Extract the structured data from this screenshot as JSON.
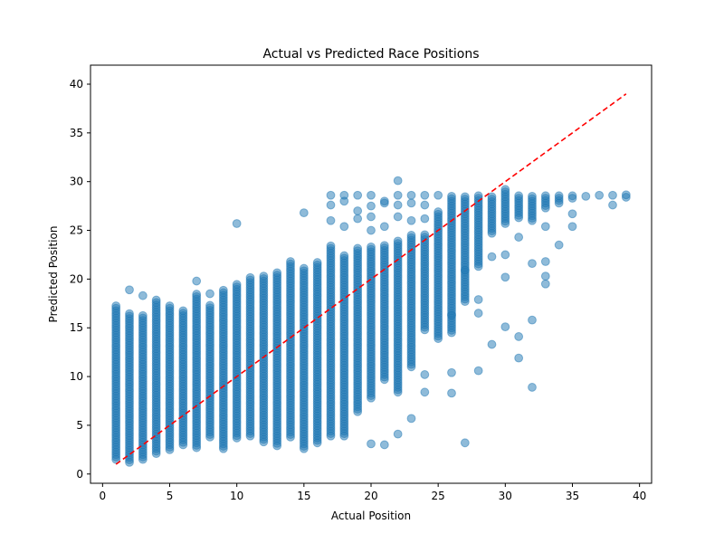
{
  "chart_data": {
    "type": "scatter",
    "title": "Actual vs Predicted Race Positions",
    "xlabel": "Actual Position",
    "ylabel": "Predicted Position",
    "xlim": [
      -0.9,
      40.9
    ],
    "ylim": [
      -0.95,
      41.95
    ],
    "xticks": [
      0,
      5,
      10,
      15,
      20,
      25,
      30,
      35,
      40
    ],
    "yticks": [
      0,
      5,
      10,
      15,
      20,
      25,
      30,
      35,
      40
    ],
    "grid": false,
    "series": [
      {
        "marker": "circle",
        "color": "#1f77b4",
        "alpha": 0.5,
        "columns": [
          {
            "x": 1,
            "min": 1.5,
            "max": 17.3,
            "extra": []
          },
          {
            "x": 2,
            "min": 1.2,
            "max": 16.5,
            "extra": [
              18.9
            ]
          },
          {
            "x": 3,
            "min": 1.5,
            "max": 16.3,
            "extra": [
              18.3
            ]
          },
          {
            "x": 4,
            "min": 2.1,
            "max": 17.9,
            "extra": []
          },
          {
            "x": 5,
            "min": 2.5,
            "max": 17.3,
            "extra": []
          },
          {
            "x": 6,
            "min": 3.0,
            "max": 16.8,
            "extra": []
          },
          {
            "x": 7,
            "min": 2.7,
            "max": 18.6,
            "extra": [
              19.8
            ]
          },
          {
            "x": 8,
            "min": 3.8,
            "max": 17.3,
            "extra": [
              18.5
            ]
          },
          {
            "x": 9,
            "min": 2.6,
            "max": 18.9,
            "extra": []
          },
          {
            "x": 10,
            "min": 3.7,
            "max": 19.5,
            "extra": [
              25.7
            ]
          },
          {
            "x": 11,
            "min": 3.9,
            "max": 20.3,
            "extra": []
          },
          {
            "x": 12,
            "min": 3.3,
            "max": 20.4,
            "extra": []
          },
          {
            "x": 13,
            "min": 2.9,
            "max": 20.8,
            "extra": []
          },
          {
            "x": 14,
            "min": 3.8,
            "max": 21.8,
            "extra": []
          },
          {
            "x": 15,
            "min": 2.6,
            "max": 21.1,
            "extra": [
              26.8
            ]
          },
          {
            "x": 16,
            "min": 3.2,
            "max": 21.7,
            "extra": []
          },
          {
            "x": 17,
            "min": 3.9,
            "max": 23.5,
            "extra": [
              26.0,
              27.6,
              28.6
            ]
          },
          {
            "x": 18,
            "min": 3.9,
            "max": 22.4,
            "extra": [
              25.4,
              28.0,
              28.6
            ]
          },
          {
            "x": 19,
            "min": 6.4,
            "max": 23.2,
            "extra": [
              26.2,
              27.0,
              28.6
            ]
          },
          {
            "x": 20,
            "min": 7.8,
            "max": 23.5,
            "extra": [
              3.1,
              25.0,
              26.4,
              27.5,
              28.6
            ]
          },
          {
            "x": 21,
            "min": 9.7,
            "max": 23.5,
            "extra": [
              3.0,
              25.4,
              27.8,
              28.0
            ]
          },
          {
            "x": 22,
            "min": 8.4,
            "max": 24.0,
            "extra": [
              4.1,
              26.4,
              27.6,
              28.6,
              30.1
            ]
          },
          {
            "x": 23,
            "min": 11.0,
            "max": 24.5,
            "extra": [
              5.7,
              26.0,
              27.8,
              28.6
            ]
          },
          {
            "x": 24,
            "min": 14.8,
            "max": 24.6,
            "extra": [
              8.4,
              10.2,
              26.2,
              27.6,
              28.6
            ]
          },
          {
            "x": 25,
            "min": 13.9,
            "max": 27.0,
            "extra": [
              28.6
            ]
          },
          {
            "x": 26,
            "min": 14.5,
            "max": 28.6,
            "extra": [
              8.3,
              10.4,
              16.3
            ]
          },
          {
            "x": 27,
            "min": 17.7,
            "max": 28.6,
            "extra": [
              3.2,
              20.9
            ]
          },
          {
            "x": 28,
            "min": 21.3,
            "max": 28.6,
            "extra": [
              10.6,
              16.5,
              17.9
            ]
          },
          {
            "x": 29,
            "min": 24.7,
            "max": 28.6,
            "extra": [
              13.3,
              22.3
            ]
          },
          {
            "x": 30,
            "min": 25.7,
            "max": 29.2,
            "extra": [
              15.1,
              20.2,
              22.5
            ]
          },
          {
            "x": 31,
            "min": 26.3,
            "max": 28.6,
            "extra": [
              11.9,
              14.1,
              24.3
            ]
          },
          {
            "x": 32,
            "min": 26.0,
            "max": 28.6,
            "extra": [
              8.9,
              15.8,
              21.6
            ]
          },
          {
            "x": 33,
            "min": 27.3,
            "max": 28.6,
            "extra": [
              19.5,
              20.3,
              21.8,
              25.4
            ]
          },
          {
            "x": 34,
            "min": 27.8,
            "max": 28.6,
            "extra": [
              23.5
            ]
          },
          {
            "x": 35,
            "min": 28.3,
            "max": 28.7,
            "extra": [
              25.4,
              26.7
            ]
          },
          {
            "x": 36,
            "min": 28.5,
            "max": 28.5,
            "extra": []
          },
          {
            "x": 37,
            "min": 28.6,
            "max": 28.6,
            "extra": []
          },
          {
            "x": 38,
            "min": 28.6,
            "max": 28.6,
            "extra": [
              27.6
            ]
          },
          {
            "x": 39,
            "min": 28.4,
            "max": 28.8,
            "extra": []
          }
        ]
      }
    ],
    "reference_line": {
      "x": [
        1,
        39
      ],
      "y": [
        1,
        39
      ],
      "style": "dashed",
      "color": "#ff0000"
    }
  }
}
